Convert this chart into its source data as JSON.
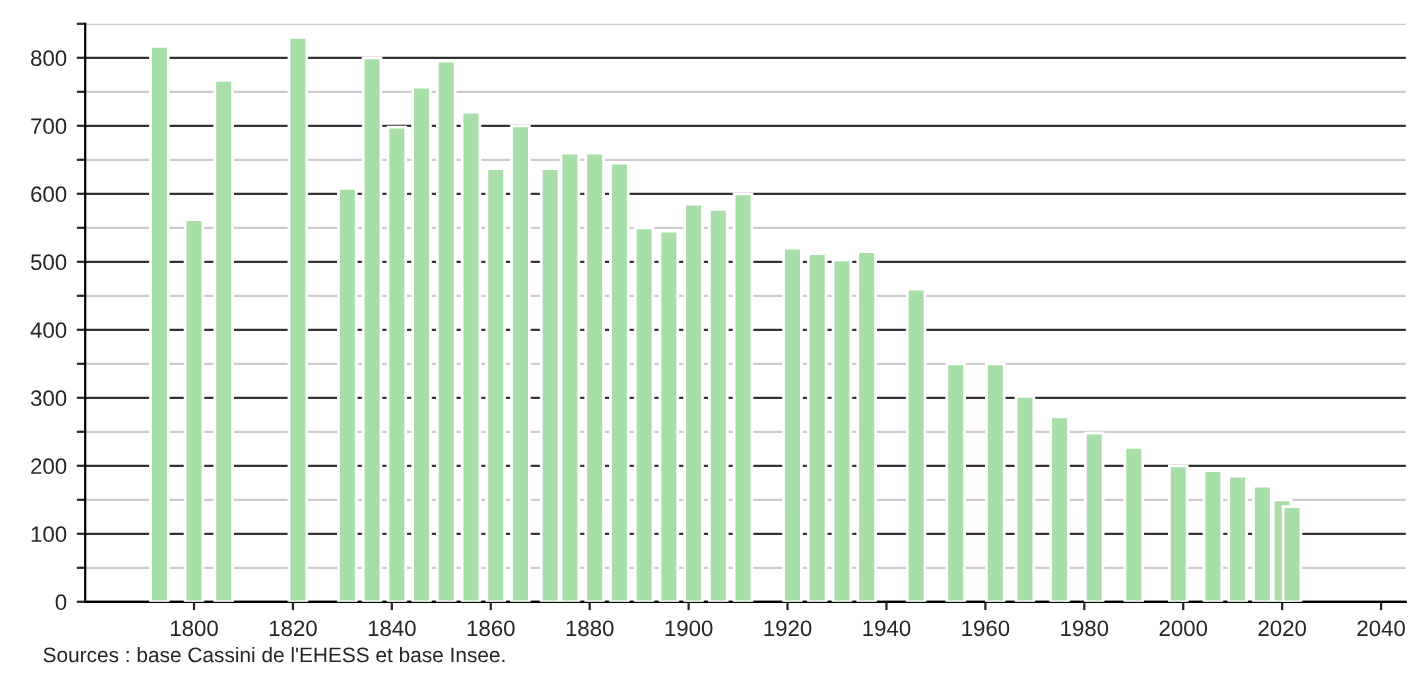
{
  "chart_data": {
    "type": "bar",
    "x": [
      1793,
      1800,
      1806,
      1821,
      1831,
      1836,
      1841,
      1846,
      1851,
      1856,
      1861,
      1866,
      1872,
      1876,
      1881,
      1886,
      1891,
      1896,
      1901,
      1906,
      1911,
      1921,
      1926,
      1931,
      1936,
      1946,
      1954,
      1962,
      1968,
      1975,
      1982,
      1990,
      1999,
      2006,
      2011,
      2016,
      2020,
      2022
    ],
    "values": [
      817,
      562,
      767,
      830,
      608,
      800,
      698,
      757,
      795,
      720,
      637,
      700,
      637,
      660,
      660,
      645,
      550,
      545,
      585,
      577,
      600,
      520,
      512,
      503,
      515,
      460,
      350,
      350,
      302,
      272,
      248,
      227,
      200,
      193,
      185,
      170,
      150,
      140
    ],
    "color": "#a8dfa8",
    "xlim": [
      1778,
      2045
    ],
    "xticks": [
      1800,
      1820,
      1840,
      1860,
      1880,
      1900,
      1920,
      1940,
      1960,
      1980,
      2000,
      2020,
      2040
    ],
    "ylim": [
      0,
      850
    ],
    "yticks": [
      0,
      {
        "value": 50,
        "label": null
      },
      100,
      {
        "value": 150,
        "label": null
      },
      200,
      {
        "value": 250,
        "label": null
      },
      300,
      {
        "value": 350,
        "label": null
      },
      400,
      {
        "value": 450,
        "label": null
      },
      500,
      {
        "value": 550,
        "label": null
      },
      600,
      {
        "value": 650,
        "label": null
      },
      700,
      {
        "value": 750,
        "label": null
      },
      800,
      {
        "value": 850,
        "label": null
      }
    ],
    "grid": "y",
    "annotations": [
      "Sources : base Cassini de l'EHESS et base Insee."
    ]
  }
}
